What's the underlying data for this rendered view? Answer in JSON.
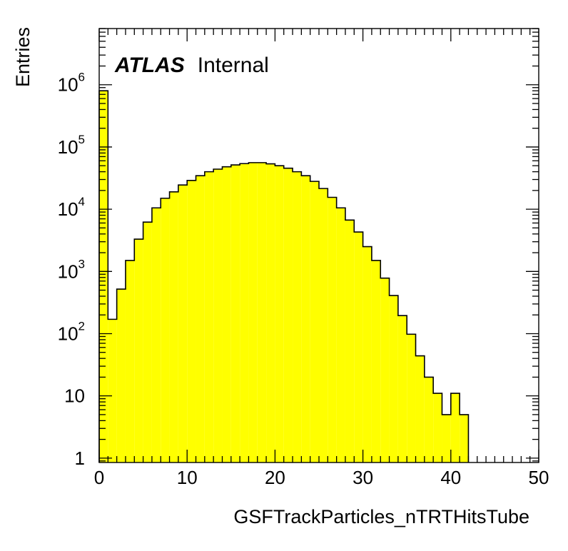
{
  "chart_data": {
    "type": "bar",
    "style": "histogram-step",
    "fill_color": "#ffff00",
    "line_color": "#000000",
    "x_label": "GSFTrackParticles_nTRTHitsTube",
    "y_label": "Entries",
    "label": {
      "bold_italic": "ATLAS",
      "normal": "Internal"
    },
    "xlim": [
      0,
      50
    ],
    "ylim": [
      0.85,
      8000000
    ],
    "y_scale": "log",
    "bin_width": 1,
    "x_ticks": [
      {
        "value": 0,
        "label": "0"
      },
      {
        "value": 10,
        "label": "10"
      },
      {
        "value": 20,
        "label": "20"
      },
      {
        "value": 30,
        "label": "30"
      },
      {
        "value": 40,
        "label": "40"
      },
      {
        "value": 50,
        "label": "50"
      }
    ],
    "y_ticks": [
      {
        "value": 1,
        "base": "1",
        "exp": ""
      },
      {
        "value": 10,
        "base": "10",
        "exp": ""
      },
      {
        "value": 100,
        "base": "10",
        "exp": "2"
      },
      {
        "value": 1000,
        "base": "10",
        "exp": "3"
      },
      {
        "value": 10000,
        "base": "10",
        "exp": "4"
      },
      {
        "value": 100000,
        "base": "10",
        "exp": "5"
      },
      {
        "value": 1000000,
        "base": "10",
        "exp": "6"
      }
    ],
    "bin_edges_start": [
      0,
      1,
      2,
      3,
      4,
      5,
      6,
      7,
      8,
      9,
      10,
      11,
      12,
      13,
      14,
      15,
      16,
      17,
      18,
      19,
      20,
      21,
      22,
      23,
      24,
      25,
      26,
      27,
      28,
      29,
      30,
      31,
      32,
      33,
      34,
      35,
      36,
      37,
      38,
      39,
      40,
      41,
      42,
      43,
      44,
      45,
      46,
      47,
      48,
      49
    ],
    "values": [
      800000,
      170,
      520,
      1500,
      3300,
      6200,
      10500,
      15000,
      19000,
      24500,
      29000,
      34500,
      40000,
      44000,
      48000,
      51500,
      54000,
      56000,
      56000,
      53500,
      50000,
      45500,
      40000,
      34500,
      28000,
      21500,
      15500,
      10500,
      6700,
      4300,
      2500,
      1500,
      780,
      410,
      195,
      98,
      44,
      20,
      11,
      5,
      11,
      5,
      0,
      0,
      0,
      0,
      0,
      0,
      0,
      0
    ]
  }
}
